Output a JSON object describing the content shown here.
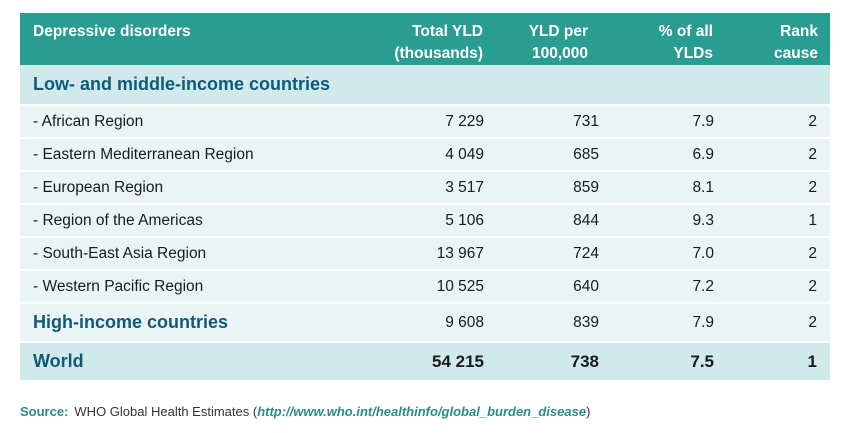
{
  "table": {
    "headers": {
      "col0": "Depressive disorders",
      "col1_line1": "Total YLD",
      "col1_line2": "(thousands)",
      "col2_line1": "YLD per",
      "col2_line2": "100,000",
      "col3_line1": "% of all",
      "col3_line2": "YLDs",
      "col4": "Rank cause"
    },
    "group_low_middle": "Low- and middle-income countries",
    "regions": [
      {
        "name": "- African Region",
        "total_yld": "7 229",
        "yld_per_100k": "731",
        "pct": "7.9",
        "rank": "2"
      },
      {
        "name": "- Eastern Mediterranean Region",
        "total_yld": "4 049",
        "yld_per_100k": "685",
        "pct": "6.9",
        "rank": "2"
      },
      {
        "name": "- European Region",
        "total_yld": "3 517",
        "yld_per_100k": "859",
        "pct": "8.1",
        "rank": "2"
      },
      {
        "name": "- Region of the Americas",
        "total_yld": "5 106",
        "yld_per_100k": "844",
        "pct": "9.3",
        "rank": "1"
      },
      {
        "name": "- South-East Asia Region",
        "total_yld": "13 967",
        "yld_per_100k": "724",
        "pct": "7.0",
        "rank": "2"
      },
      {
        "name": "- Western Pacific Region",
        "total_yld": "10 525",
        "yld_per_100k": "640",
        "pct": "7.2",
        "rank": "2"
      }
    ],
    "high_income": {
      "name": "High-income countries",
      "total_yld": "9 608",
      "yld_per_100k": "839",
      "pct": "7.9",
      "rank": "2"
    },
    "world": {
      "name": "World",
      "total_yld": "54 215",
      "yld_per_100k": "738",
      "pct": "7.5",
      "rank": "1"
    }
  },
  "source": {
    "label": "Source:",
    "text_before": "WHO Global Health Estimates (",
    "link": "http://www.who.int/healthinfo/global_burden_disease",
    "text_after": ")"
  },
  "colors": {
    "header_bg": "#2a9d92",
    "group_bg": "#d0e9ea",
    "row_bg": "#ebf4f4",
    "group_text": "#0f5a7a",
    "source_accent": "#2a8c84"
  }
}
